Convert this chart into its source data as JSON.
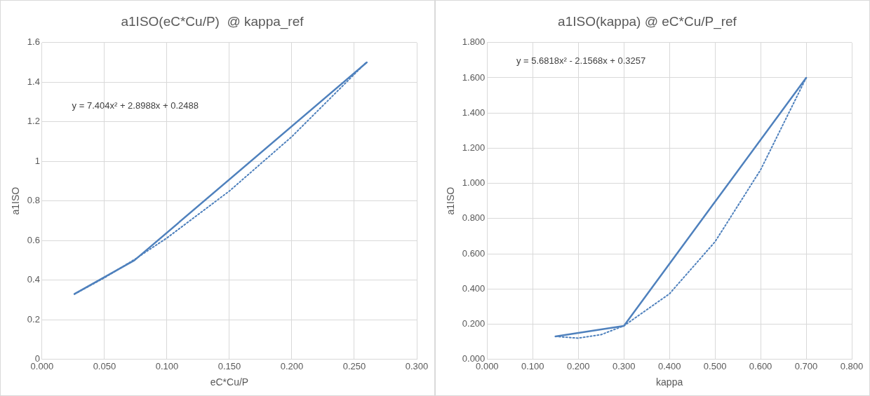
{
  "chart_data": [
    {
      "type": "line",
      "title": "a1ISO(eC*Cu/P)  @ kappa_ref",
      "xlabel": "eC*Cu/P",
      "ylabel": "a1ISO",
      "annotations": [
        "y = 7.404x² + 2.8988x + 0.2488"
      ],
      "xlim": [
        0,
        0.3
      ],
      "xticks": [
        {
          "value": 0,
          "label": "0.000"
        },
        {
          "value": 0.05,
          "label": "0.050"
        },
        {
          "value": 0.1,
          "label": "0.100"
        },
        {
          "value": 0.15,
          "label": "0.150"
        },
        {
          "value": 0.2,
          "label": "0.200"
        },
        {
          "value": 0.25,
          "label": "0.250"
        },
        {
          "value": 0.3,
          "label": "0.300"
        }
      ],
      "ylim": [
        0,
        1.6
      ],
      "yticks": [
        0,
        0.2,
        0.4,
        0.6,
        0.8,
        1,
        1.2,
        1.4,
        1.6
      ],
      "grid": true,
      "legend": false,
      "marker": "none",
      "series": [
        {
          "color": "#4f81bd",
          "x": [
            0.026,
            0.074,
            0.26
          ],
          "values": [
            0.33,
            0.5,
            1.5
          ],
          "line_style": "solid"
        },
        {
          "color": "#4f81bd",
          "x": [
            0.026,
            0.05,
            0.074,
            0.1,
            0.15,
            0.2,
            0.26
          ],
          "values": [
            0.329,
            0.412,
            0.504,
            0.613,
            0.85,
            1.125,
            1.503
          ],
          "line_style": "dotted"
        }
      ]
    },
    {
      "type": "line",
      "title": "a1ISO(kappa) @ eC*Cu/P_ref",
      "xlabel": "kappa",
      "ylabel": "a1ISO",
      "annotations": [
        "y = 5.6818x² - 2.1568x + 0.3257"
      ],
      "xlim": [
        0,
        0.8
      ],
      "xticks": [
        {
          "value": 0,
          "label": "0.000"
        },
        {
          "value": 0.1,
          "label": "0.100"
        },
        {
          "value": 0.2,
          "label": "0.200"
        },
        {
          "value": 0.3,
          "label": "0.300"
        },
        {
          "value": 0.4,
          "label": "0.400"
        },
        {
          "value": 0.5,
          "label": "0.500"
        },
        {
          "value": 0.6,
          "label": "0.600"
        },
        {
          "value": 0.7,
          "label": "0.700"
        },
        {
          "value": 0.8,
          "label": "0.800"
        }
      ],
      "ylim": [
        0,
        1.8
      ],
      "yticks": [
        {
          "value": 0,
          "label": "0.000"
        },
        {
          "value": 0.2,
          "label": "0.200"
        },
        {
          "value": 0.4,
          "label": "0.400"
        },
        {
          "value": 0.6,
          "label": "0.600"
        },
        {
          "value": 0.8,
          "label": "0.800"
        },
        {
          "value": 1,
          "label": "1.000"
        },
        {
          "value": 1.2,
          "label": "1.200"
        },
        {
          "value": 1.4,
          "label": "1.400"
        },
        {
          "value": 1.6,
          "label": "1.600"
        },
        {
          "value": 1.8,
          "label": "1.800"
        }
      ],
      "grid": true,
      "legend": false,
      "marker": "none",
      "series": [
        {
          "color": "#4f81bd",
          "x": [
            0.15,
            0.3,
            0.7
          ],
          "values": [
            0.13,
            0.19,
            1.6
          ],
          "line_style": "solid"
        },
        {
          "color": "#4f81bd",
          "x": [
            0.15,
            0.2,
            0.25,
            0.3,
            0.4,
            0.5,
            0.6,
            0.7
          ],
          "values": [
            0.13,
            0.12,
            0.14,
            0.19,
            0.372,
            0.668,
            1.077,
            1.6
          ],
          "line_style": "dotted"
        }
      ]
    }
  ]
}
